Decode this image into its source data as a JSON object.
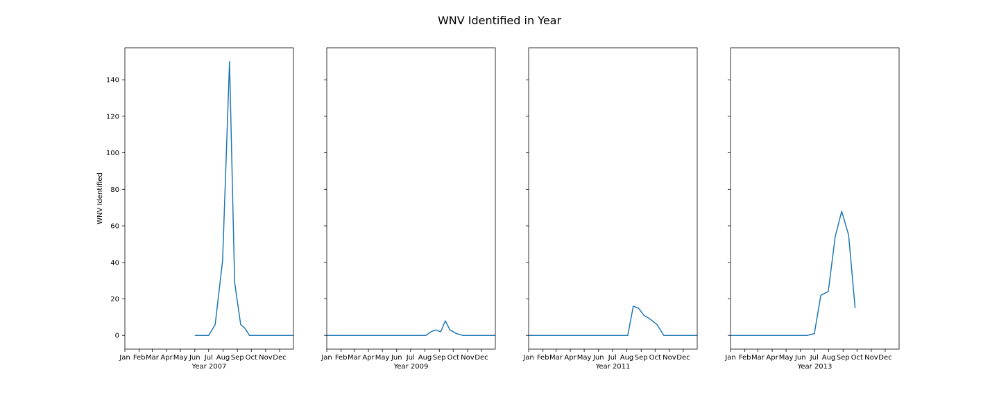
{
  "chart_data": {
    "title": "WNV Identified in Year",
    "type": "line",
    "ylabel": "WNV Identified",
    "ylim": [
      -7.5,
      157.5
    ],
    "yticks": [
      0,
      20,
      40,
      60,
      80,
      100,
      120,
      140
    ],
    "sharey": true,
    "x_month_labels": [
      "Jan",
      "Feb",
      "Mar",
      "Apr",
      "May",
      "Jun",
      "Jul",
      "Aug",
      "Sep",
      "Oct",
      "Nov",
      "Dec"
    ],
    "grid": false,
    "line_color": "#1f77b4",
    "panels": [
      {
        "xlabel": "Year 2007",
        "x": [
          "2007-06-01",
          "2007-06-15",
          "2007-07-01",
          "2007-07-15",
          "2007-07-31",
          "2007-08-15",
          "2007-08-26",
          "2007-09-08",
          "2007-09-17",
          "2007-09-27",
          "2007-10-10",
          "2007-10-25",
          "2007-11-08",
          "2007-12-01",
          "2007-12-31"
        ],
        "y": [
          0,
          0,
          0,
          6,
          41,
          150,
          29,
          6,
          4,
          0,
          0,
          0,
          0,
          0,
          0
        ]
      },
      {
        "xlabel": "Year 2009",
        "x": [
          "2009-01-01",
          "2009-07-07",
          "2009-07-21",
          "2009-08-03",
          "2009-08-14",
          "2009-08-24",
          "2009-09-04",
          "2009-09-14",
          "2009-09-24",
          "2009-10-08",
          "2009-10-22",
          "2009-11-15",
          "2009-12-31"
        ],
        "y": [
          0,
          0,
          0,
          0,
          2,
          3,
          2,
          8,
          3,
          1,
          0,
          0,
          0
        ]
      },
      {
        "xlabel": "Year 2011",
        "x": [
          "2011-01-01",
          "2011-07-20",
          "2011-08-03",
          "2011-08-15",
          "2011-08-26",
          "2011-09-07",
          "2011-09-20",
          "2011-10-05",
          "2011-10-20",
          "2011-11-15",
          "2011-12-31"
        ],
        "y": [
          0,
          0,
          0,
          16,
          15,
          11,
          9,
          6,
          0,
          0,
          0
        ]
      },
      {
        "xlabel": "Year 2013",
        "x": [
          "2013-01-01",
          "2013-06-15",
          "2013-07-01",
          "2013-07-15",
          "2013-07-31",
          "2013-08-15",
          "2013-08-29",
          "2013-09-13",
          "2013-09-27"
        ],
        "y": [
          0,
          0,
          1,
          22,
          24,
          54,
          68,
          55,
          15
        ]
      }
    ]
  }
}
